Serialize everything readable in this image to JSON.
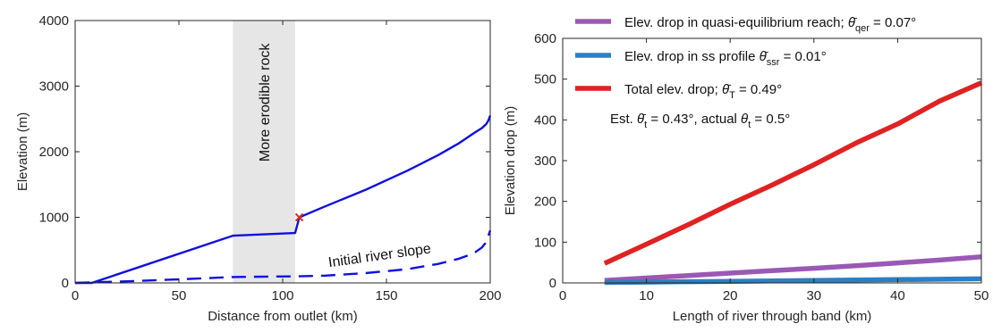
{
  "chart_data": [
    {
      "type": "line",
      "title": "",
      "xlabel": "Distance from outlet (km)",
      "ylabel": "Elevation (m)",
      "xlim": [
        0,
        200
      ],
      "ylim": [
        0,
        4000
      ],
      "xticks": [
        "0",
        "50",
        "100",
        "150",
        "200"
      ],
      "yticks": [
        "0",
        "1000",
        "2000",
        "3000",
        "4000"
      ],
      "shaded_band": {
        "x": [
          76,
          106
        ],
        "label": "More erodible rock",
        "color": "#e6e6e6"
      },
      "series": [
        {
          "style": "solid",
          "color": "#1010e0",
          "x": [
            0,
            8,
            76,
            106,
            108,
            120,
            140,
            160,
            175,
            185,
            192,
            196,
            198,
            199,
            200
          ],
          "y": [
            0,
            0,
            720,
            760,
            1000,
            1160,
            1420,
            1710,
            1950,
            2130,
            2280,
            2360,
            2420,
            2470,
            2550
          ]
        },
        {
          "name": "Initial river slope",
          "style": "dashed",
          "color": "#1010e0",
          "x": [
            0,
            25,
            50,
            76,
            106,
            120,
            140,
            160,
            175,
            185,
            192,
            196,
            198,
            200
          ],
          "y": [
            0,
            25,
            55,
            90,
            100,
            110,
            150,
            210,
            290,
            370,
            450,
            540,
            620,
            800
          ]
        }
      ],
      "marker": {
        "x": 108,
        "y": 1000,
        "symbol": "x",
        "color": "#e03010"
      },
      "annotations": [
        {
          "text": "Initial river slope",
          "x": 147,
          "y": 350
        }
      ]
    },
    {
      "type": "line",
      "title": "",
      "xlabel": "Length of river through band (km)",
      "ylabel": "Elevation drop (m)",
      "xlim": [
        0,
        50
      ],
      "ylim": [
        0,
        600
      ],
      "xticks": [
        "0",
        "10",
        "20",
        "30",
        "40",
        "50"
      ],
      "yticks": [
        "0",
        "100",
        "200",
        "300",
        "400",
        "500",
        "600"
      ],
      "legend": "top-left",
      "series": [
        {
          "legend_text": "Elev. drop in quasi-equilibrium reach;",
          "symbol": "θ̄",
          "subscript": "qer",
          "value_text": "= 0.07°",
          "color": "#9a59b5",
          "x": [
            5,
            10,
            15,
            20,
            25,
            30,
            35,
            40,
            45,
            50
          ],
          "y": [
            6,
            12,
            18,
            24,
            30,
            36,
            42,
            49,
            56,
            64
          ]
        },
        {
          "legend_text": "Elev. drop in ss profile",
          "symbol": "θ̄",
          "subscript": "ssr",
          "value_text": "= 0.01°",
          "color": "#2e7fc2",
          "x": [
            5,
            10,
            15,
            20,
            25,
            30,
            35,
            40,
            45,
            50
          ],
          "y": [
            1,
            2,
            3,
            4,
            5,
            6,
            7,
            8,
            9,
            10
          ]
        },
        {
          "legend_text": "Total elev. drop;",
          "symbol": "θ̄",
          "subscript": "T",
          "value_text": "= 0.49°",
          "color": "#e02222",
          "x": [
            5,
            10,
            15,
            20,
            25,
            30,
            35,
            40,
            45,
            50
          ],
          "y": [
            48,
            95,
            143,
            193,
            240,
            290,
            343,
            390,
            446,
            491
          ]
        }
      ],
      "annotation": {
        "prefix": "Est.",
        "symbol": "θ̄",
        "subscript": "t",
        "value_text": "= 0.43°, actual",
        "symbol2": "θ",
        "subscript2": "t",
        "value_text2": "= 0.5°"
      }
    }
  ]
}
